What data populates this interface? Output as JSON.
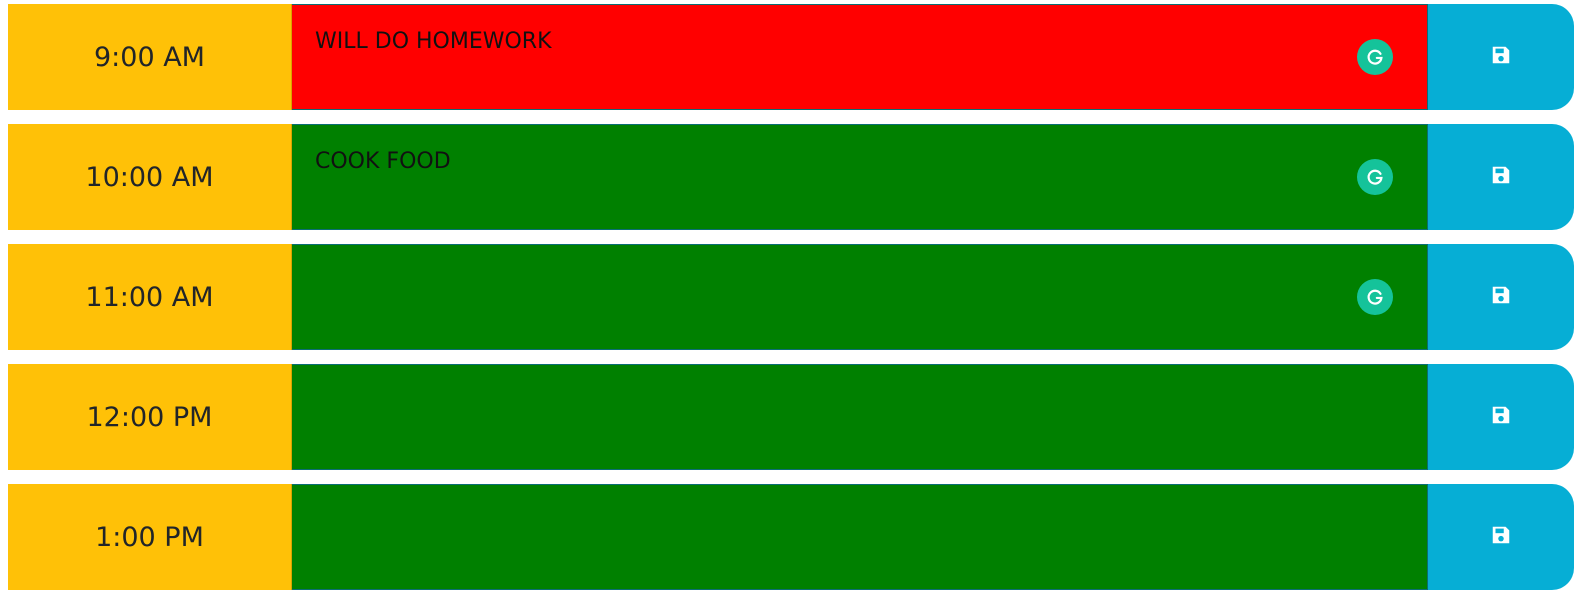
{
  "colors": {
    "hour_bg": "#ffc107",
    "past": "#ff0000",
    "future": "#008000",
    "save_bg": "#06aed5",
    "grammarly": "#15c39a"
  },
  "rows": [
    {
      "hour": "9:00 AM",
      "text": "WILL DO HOMEWORK",
      "state": "past",
      "save_icon": "floppy-disk-icon",
      "has_grammarly": true
    },
    {
      "hour": "10:00 AM",
      "text": "COOK FOOD",
      "state": "future",
      "save_icon": "floppy-disk-icon",
      "has_grammarly": true
    },
    {
      "hour": "11:00 AM",
      "text": "",
      "state": "future",
      "save_icon": "floppy-disk-icon",
      "has_grammarly": true
    },
    {
      "hour": "12:00 PM",
      "text": "",
      "state": "future",
      "save_icon": "floppy-disk-icon",
      "has_grammarly": false
    },
    {
      "hour": "1:00 PM",
      "text": "",
      "state": "future",
      "save_icon": "floppy-disk-icon",
      "has_grammarly": false
    }
  ]
}
